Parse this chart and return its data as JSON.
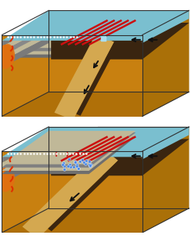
{
  "fig_width": 2.44,
  "fig_height": 3.0,
  "dpi": 100,
  "bg_color": "#ffffff",
  "colors": {
    "water_blue": "#7abfcf",
    "dark_crust": "#3a2510",
    "mantle_gold": "#c88010",
    "mantle_gold_side": "#b07008",
    "gray_dark": "#808080",
    "gray_mid": "#a8a490",
    "gray_light": "#c0b898",
    "fault_red": "#cc1010",
    "orange_dashed": "#e04000",
    "magma_orange": "#e07010",
    "accretionary": "#d4a850",
    "blue_dot": "#4488ee",
    "white": "#ffffff",
    "black": "#101010",
    "outline": "#404040",
    "slab_brown": "#5a3818",
    "water_dark": "#5aa0b8",
    "mantle_right": "#aa7008"
  }
}
